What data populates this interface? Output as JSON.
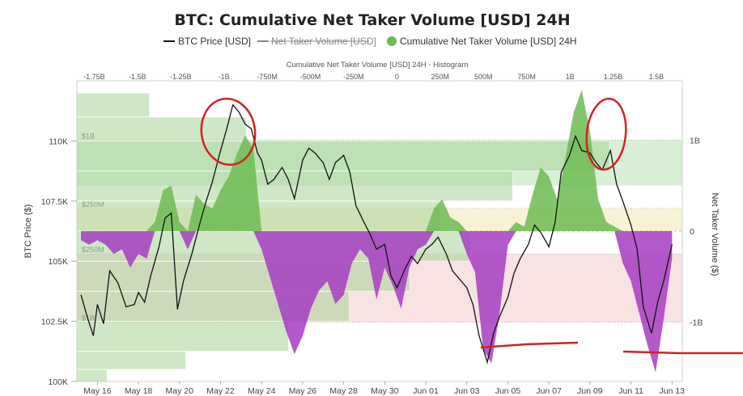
{
  "chart_data": {
    "type": "line",
    "title": "BTC: Cumulative Net Taker Volume [USD] 24H",
    "legend": {
      "placement": "top",
      "items": [
        {
          "label": "BTC Price [USD]",
          "style": "line",
          "color": "#111111"
        },
        {
          "label": "Net Taker Volume [USD]",
          "style": "line-struck",
          "color": "#888888"
        },
        {
          "label": "Cumulative Net Taker Volume [USD] 24H",
          "style": "dot",
          "color": "#6dbb52"
        }
      ]
    },
    "top_axis": {
      "label": "Cumulative Net Taker Volume [USD] 24H - Histogram",
      "ticks": [
        "-1.75B",
        "-1.5B",
        "-1.25B",
        "-1B",
        "-750M",
        "-500M",
        "-250M",
        "0",
        "250M",
        "500M",
        "750M",
        "1B",
        "1.25B",
        "1.5B"
      ],
      "range": [
        -1.85,
        1.65
      ]
    },
    "x_axis": {
      "ticks": [
        "May 16",
        "May 18",
        "May 20",
        "May 22",
        "May 24",
        "May 26",
        "May 28",
        "May 30",
        "Jun 01",
        "Jun 03",
        "Jun 05",
        "Jun 07",
        "Jun 09",
        "Jun 11",
        "Jun 13"
      ],
      "range": [
        15.0,
        44.5
      ]
    },
    "y_left": {
      "label": "BTC Price ($)",
      "ticks": [
        "110K",
        "107.5K",
        "105K",
        "102.5K",
        "100K"
      ],
      "range": [
        100000,
        112500
      ]
    },
    "y_right": {
      "label": "Net Taker Volume ($)",
      "ticks": [
        "1B",
        "0",
        "-1B"
      ],
      "range": [
        -1.65,
        1.65
      ]
    },
    "bands": [
      {
        "label": "$1B",
        "from": 0.5,
        "to": 1.0,
        "color": "#d9efd6"
      },
      {
        "label": "$250M",
        "from": 0.0,
        "to": 0.25,
        "color": "#f8f2d5"
      },
      {
        "label": "$250M",
        "from": -1.0,
        "to": -0.25,
        "color": "#f8e2e2"
      },
      {
        "label": "$1B",
        "from": -1.0,
        "to": -1.0,
        "color": "#f8e2e2"
      }
    ],
    "histogram": {
      "color": "#a9d59b",
      "bins": [
        {
          "price_from": 100000,
          "price_to": 100500,
          "value": 0.05
        },
        {
          "price_from": 100500,
          "price_to": 101250,
          "value": 0.18
        },
        {
          "price_from": 101250,
          "price_to": 102500,
          "value": 0.35
        },
        {
          "price_from": 102500,
          "price_to": 103750,
          "value": 0.45
        },
        {
          "price_from": 103750,
          "price_to": 105000,
          "value": 0.55
        },
        {
          "price_from": 105000,
          "price_to": 106250,
          "value": 0.65
        },
        {
          "price_from": 106250,
          "price_to": 107500,
          "value": 0.6
        },
        {
          "price_from": 107500,
          "price_to": 108750,
          "value": 0.72
        },
        {
          "price_from": 108750,
          "price_to": 110000,
          "value": 0.88
        },
        {
          "price_from": 110000,
          "price_to": 111000,
          "value": 0.28
        },
        {
          "price_from": 111000,
          "price_to": 112000,
          "value": 0.12
        }
      ]
    },
    "series": [
      {
        "name": "BTC Price [USD]",
        "axis": "left",
        "color": "#111111",
        "x": [
          15.2,
          15.5,
          15.8,
          16.0,
          16.3,
          16.6,
          17.0,
          17.4,
          17.8,
          18.0,
          18.3,
          18.6,
          19.0,
          19.3,
          19.6,
          19.9,
          20.2,
          20.6,
          21.0,
          21.3,
          21.6,
          22.0,
          22.3,
          22.6,
          22.9,
          23.2,
          23.5,
          23.8,
          24.0,
          24.3,
          24.6,
          25.0,
          25.3,
          25.6,
          26.0,
          26.3,
          26.6,
          27.0,
          27.3,
          27.6,
          28.0,
          28.3,
          28.6,
          29.0,
          29.3,
          29.6,
          30.0,
          30.3,
          30.6,
          31.0,
          31.3,
          31.6,
          32.0,
          32.3,
          32.6,
          33.0,
          33.3,
          33.6,
          34.0,
          34.3,
          34.6,
          35.0,
          35.3,
          35.6,
          36.0,
          36.3,
          36.6,
          37.0,
          37.3,
          37.6,
          38.0,
          38.3,
          38.6,
          39.0,
          39.3,
          39.6,
          40.0,
          40.3,
          40.6,
          41.0,
          41.3,
          41.6,
          42.0,
          42.3,
          42.6,
          43.0,
          43.3,
          43.6,
          44.0
        ],
        "y": [
          103600,
          102700,
          101900,
          103200,
          102400,
          104600,
          104100,
          103100,
          103200,
          103700,
          103300,
          104400,
          105600,
          106800,
          107000,
          103000,
          104200,
          105300,
          106600,
          107500,
          108300,
          109600,
          110500,
          111500,
          111200,
          110700,
          110500,
          109500,
          109200,
          108200,
          108400,
          108900,
          108400,
          107600,
          109200,
          109700,
          109500,
          109100,
          108400,
          109100,
          109400,
          108700,
          107300,
          106600,
          106100,
          105500,
          105700,
          104400,
          103900,
          104700,
          105200,
          104900,
          105500,
          105700,
          106000,
          105300,
          104600,
          104300,
          103900,
          103200,
          101900,
          100800,
          102000,
          102700,
          103500,
          104500,
          105100,
          105700,
          106500,
          106200,
          105600,
          106600,
          108700,
          109400,
          110200,
          109600,
          109500,
          109100,
          108800,
          109600,
          108200,
          107500,
          106500,
          105500,
          103100,
          102000,
          103300,
          104200,
          105700
        ]
      },
      {
        "name": "Cumulative Net Taker Volume [USD] 24H",
        "axis": "right",
        "color_positive": "#6dbb52",
        "color_negative": "#a63cc2",
        "x": [
          15.2,
          15.6,
          16.0,
          16.4,
          16.8,
          17.2,
          17.6,
          18.0,
          18.4,
          18.8,
          19.2,
          19.6,
          20.0,
          20.4,
          20.8,
          21.2,
          21.6,
          22.0,
          22.4,
          22.8,
          23.2,
          23.6,
          24.0,
          24.4,
          24.8,
          25.2,
          25.6,
          26.0,
          26.4,
          26.8,
          27.2,
          27.6,
          28.0,
          28.4,
          28.8,
          29.2,
          29.6,
          30.0,
          30.4,
          30.8,
          31.2,
          31.6,
          32.0,
          32.4,
          32.8,
          33.2,
          33.6,
          34.0,
          34.4,
          34.8,
          35.2,
          35.6,
          36.0,
          36.4,
          36.8,
          37.2,
          37.6,
          38.0,
          38.4,
          38.8,
          39.2,
          39.6,
          40.0,
          40.4,
          40.8,
          41.2,
          41.6,
          42.0,
          42.4,
          42.8,
          43.2,
          43.6,
          44.0
        ],
        "y": [
          -0.1,
          -0.15,
          -0.1,
          -0.15,
          -0.25,
          -0.2,
          -0.4,
          -0.25,
          -0.3,
          0.1,
          0.45,
          0.5,
          0.1,
          -0.2,
          0.4,
          0.3,
          0.25,
          0.45,
          0.6,
          0.85,
          1.05,
          0.9,
          -0.2,
          -0.5,
          -0.8,
          -1.1,
          -1.35,
          -1.15,
          -0.85,
          -0.65,
          -0.55,
          -0.8,
          -0.7,
          -0.35,
          -0.2,
          -0.3,
          -0.75,
          -0.4,
          -0.6,
          -0.85,
          -0.4,
          -0.2,
          -0.15,
          0.25,
          0.35,
          0.15,
          0.1,
          -0.25,
          -0.45,
          -1.3,
          -1.45,
          -0.9,
          -0.15,
          0.1,
          0.05,
          0.4,
          0.7,
          0.6,
          0.35,
          0.8,
          1.3,
          1.55,
          1.1,
          0.35,
          0.1,
          0.05,
          -0.35,
          -0.55,
          -0.9,
          -1.25,
          -1.55,
          -0.95,
          -0.3
        ]
      }
    ],
    "annotations": [
      {
        "type": "red-ellipse",
        "around": "May 22-23 price top"
      },
      {
        "type": "red-ellipse",
        "around": "Jun 09-10 price top"
      },
      {
        "type": "red-line",
        "near": "Jun 05 low"
      },
      {
        "type": "red-line",
        "near": "Jun 13 low"
      }
    ]
  }
}
